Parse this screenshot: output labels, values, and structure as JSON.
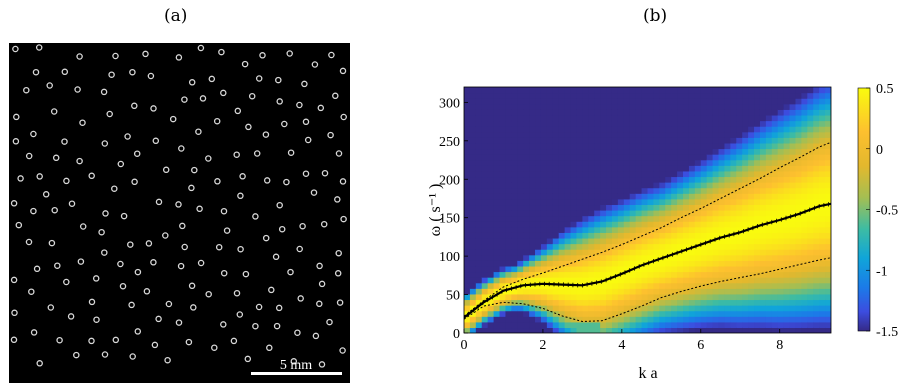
{
  "panels": {
    "a_label": "(a)",
    "b_label": "(b)"
  },
  "photo": {
    "scale_bar_label": "5 mm",
    "background_color": "#000000",
    "particle_color": "#d8d8d8"
  },
  "chart_data": {
    "type": "heatmap",
    "title": "",
    "xlabel": "k a",
    "ylabel": "ω ( s⁻¹ )",
    "xlim": [
      0,
      9.3
    ],
    "ylim": [
      0,
      320
    ],
    "xticks": [
      "0",
      "2",
      "4",
      "6",
      "8"
    ],
    "yticks": [
      "0",
      "50",
      "100",
      "150",
      "200",
      "250",
      "300"
    ],
    "colorbar": {
      "ticks": [
        "0.5",
        "0",
        "-0.5",
        "-1",
        "-1.5"
      ],
      "range": [
        -1.5,
        0.5
      ],
      "colormap": "parula"
    },
    "series": [
      {
        "style": "solid-black-markers",
        "x": [
          0,
          0.5,
          1,
          1.5,
          2,
          2.5,
          3,
          3.5,
          4,
          4.5,
          5,
          5.5,
          6,
          6.5,
          7,
          7.5,
          8,
          8.5,
          9,
          9.3
        ],
        "y": [
          20,
          40,
          55,
          62,
          64,
          63,
          62,
          67,
          77,
          88,
          97,
          106,
          115,
          124,
          131,
          140,
          147,
          155,
          165,
          168
        ]
      },
      {
        "style": "upper-dashed",
        "x": [
          0,
          0.5,
          1,
          1.5,
          2,
          2.5,
          3,
          3.5,
          4,
          4.5,
          5,
          5.5,
          6,
          6.5,
          7,
          7.5,
          8,
          8.5,
          9,
          9.3
        ],
        "y": [
          22,
          42,
          60,
          70,
          78,
          87,
          96,
          105,
          115,
          126,
          137,
          150,
          162,
          175,
          188,
          201,
          215,
          228,
          242,
          248
        ]
      },
      {
        "style": "lower-dashed",
        "x": [
          0,
          0.5,
          1,
          1.5,
          2,
          2.5,
          3,
          3.5,
          4,
          4.5,
          5,
          5.5,
          6,
          6.5,
          7,
          7.5,
          8,
          8.5,
          9,
          9.3
        ],
        "y": [
          18,
          35,
          40,
          38,
          32,
          22,
          15,
          16,
          25,
          35,
          46,
          54,
          61,
          67,
          72,
          77,
          83,
          89,
          95,
          98
        ]
      }
    ]
  }
}
